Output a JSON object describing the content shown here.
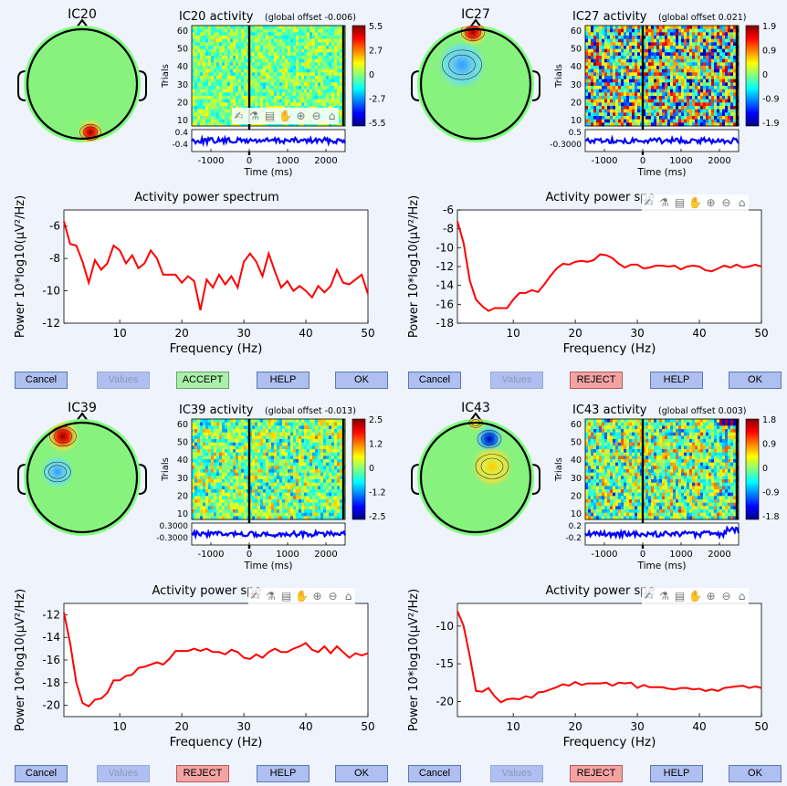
{
  "colors": {
    "background": "#eef3fc",
    "spectrum_line": "#ff0000",
    "erp_line": "#0000ff",
    "accept": "#aaf0aa",
    "reject": "#f4a3a3",
    "button": "#aebff0"
  },
  "toolbar_icons": [
    "brush-icon",
    "data-cursor-icon",
    "legend-icon",
    "pan-icon",
    "zoom-in-icon",
    "zoom-out-icon",
    "home-icon"
  ],
  "panels": [
    {
      "id": "ic20",
      "topo": {
        "title": "IC20"
      },
      "erp": {
        "title": "IC20 activity",
        "offset": "(global offset -0.006)",
        "ylabel": "Trials",
        "xlabel": "Time (ms)",
        "yticks": [
          "60",
          "50",
          "40",
          "30",
          "20",
          "10"
        ],
        "xticks": [
          "-1000",
          "0",
          "1000",
          "2000"
        ],
        "erp_ticks": [
          "0.4",
          "-0.4"
        ],
        "colorbar": [
          "5.5",
          "2.7",
          "0",
          "-2.7",
          "-5.5"
        ]
      },
      "chart_data": {
        "type": "line",
        "title": "Activity power spectrum",
        "xlabel": "Frequency (Hz)",
        "ylabel": "Power 10*log10(µV²/Hz)",
        "xlim": [
          1,
          50
        ],
        "ylim": [
          -12,
          -5
        ],
        "xticks": [
          10,
          20,
          30,
          40,
          50
        ],
        "yticks": [
          -6,
          -8,
          -10,
          -12
        ],
        "x": [
          1,
          2,
          3,
          4,
          5,
          6,
          7,
          8,
          9,
          10,
          11,
          12,
          13,
          14,
          15,
          16,
          17,
          18,
          19,
          20,
          21,
          22,
          23,
          24,
          25,
          26,
          27,
          28,
          29,
          30,
          31,
          32,
          33,
          34,
          35,
          36,
          37,
          38,
          39,
          40,
          41,
          42,
          43,
          44,
          45,
          46,
          47,
          48,
          49,
          50
        ],
        "y": [
          -5.7,
          -7.1,
          -7.2,
          -8.2,
          -9.5,
          -8.1,
          -8.7,
          -8.3,
          -7.2,
          -7.5,
          -8.3,
          -7.8,
          -8.6,
          -8.3,
          -7.5,
          -8.0,
          -9.0,
          -9.0,
          -9.0,
          -9.5,
          -9.1,
          -9.4,
          -11.2,
          -9.3,
          -9.8,
          -9.0,
          -9.6,
          -9.1,
          -9.8,
          -8.2,
          -7.7,
          -8.2,
          -9.1,
          -7.7,
          -8.8,
          -9.8,
          -9.4,
          -10.0,
          -9.7,
          -10.0,
          -10.4,
          -9.7,
          -10.1,
          -9.7,
          -8.7,
          -9.5,
          -9.6,
          -9.3,
          -9.0,
          -10.2
        ]
      },
      "buttons": {
        "cancel": "Cancel",
        "values": "Values",
        "status": "ACCEPT",
        "help": "HELP",
        "ok": "OK"
      },
      "status_kind": "accept",
      "show_spectrum_title": true
    },
    {
      "id": "ic27",
      "topo": {
        "title": "IC27"
      },
      "erp": {
        "title": "IC27 activity",
        "offset": "(global offset 0.021)",
        "ylabel": "Trials",
        "xlabel": "Time (ms)",
        "yticks": [
          "60",
          "50",
          "40",
          "30",
          "20",
          "10"
        ],
        "xticks": [
          "-1000",
          "0",
          "1000",
          "2000"
        ],
        "erp_ticks": [
          "0.5",
          "-0.3000"
        ],
        "colorbar": [
          "1.9",
          "0.9",
          "0",
          "-0.9",
          "-1.9"
        ]
      },
      "chart_data": {
        "type": "line",
        "title": "Activity power spectrum",
        "xlabel": "Frequency (Hz)",
        "ylabel": "Power 10*log10(µV²/Hz)",
        "xlim": [
          1,
          50
        ],
        "ylim": [
          -18,
          -6
        ],
        "xticks": [
          10,
          20,
          30,
          40,
          50
        ],
        "yticks": [
          -6,
          -8,
          -10,
          -12,
          -14,
          -16,
          -18
        ],
        "x": [
          1,
          2,
          3,
          4,
          5,
          6,
          7,
          8,
          9,
          10,
          11,
          12,
          13,
          14,
          15,
          16,
          17,
          18,
          19,
          20,
          21,
          22,
          23,
          24,
          25,
          26,
          27,
          28,
          29,
          30,
          31,
          32,
          33,
          34,
          35,
          36,
          37,
          38,
          39,
          40,
          41,
          42,
          43,
          44,
          45,
          46,
          47,
          48,
          49,
          50
        ],
        "y": [
          -7.2,
          -9.5,
          -13.5,
          -15.5,
          -16.2,
          -16.7,
          -16.4,
          -16.4,
          -16.4,
          -15.5,
          -14.8,
          -14.8,
          -14.5,
          -14.7,
          -13.9,
          -13.0,
          -12.2,
          -11.7,
          -11.8,
          -11.5,
          -11.4,
          -11.5,
          -11.3,
          -10.7,
          -10.8,
          -11.1,
          -11.7,
          -12.1,
          -11.8,
          -11.8,
          -12.2,
          -12.1,
          -11.9,
          -11.9,
          -12.0,
          -11.9,
          -12.3,
          -12.0,
          -11.9,
          -12.0,
          -12.4,
          -12.5,
          -12.2,
          -11.9,
          -12.1,
          -11.8,
          -12.1,
          -12.0,
          -11.8,
          -12.0
        ]
      },
      "buttons": {
        "cancel": "Cancel",
        "values": "Values",
        "status": "REJECT",
        "help": "HELP",
        "ok": "OK"
      },
      "status_kind": "reject",
      "show_spectrum_title": false,
      "spectrum_title_visible": "Activity power spe"
    },
    {
      "id": "ic39",
      "topo": {
        "title": "IC39"
      },
      "erp": {
        "title": "IC39 activity",
        "offset": "(global offset -0.013)",
        "ylabel": "Trials",
        "xlabel": "Time (ms)",
        "yticks": [
          "60",
          "50",
          "40",
          "30",
          "20",
          "10"
        ],
        "xticks": [
          "-1000",
          "0",
          "1000",
          "2000"
        ],
        "erp_ticks": [
          "0.3000",
          "-0.3000"
        ],
        "colorbar": [
          "2.5",
          "1.2",
          "0",
          "-1.2",
          "-2.5"
        ]
      },
      "chart_data": {
        "type": "line",
        "title": "Activity power spectrum",
        "xlabel": "Frequency (Hz)",
        "ylabel": "Power 10*log10(µV²/Hz)",
        "xlim": [
          1,
          50
        ],
        "ylim": [
          -21,
          -11
        ],
        "xticks": [
          10,
          20,
          30,
          40,
          50
        ],
        "yticks": [
          -12,
          -14,
          -16,
          -18,
          -20
        ],
        "x": [
          1,
          2,
          3,
          4,
          5,
          6,
          7,
          8,
          9,
          10,
          11,
          12,
          13,
          14,
          15,
          16,
          17,
          18,
          19,
          20,
          21,
          22,
          23,
          24,
          25,
          26,
          27,
          28,
          29,
          30,
          31,
          32,
          33,
          34,
          35,
          36,
          37,
          38,
          39,
          40,
          41,
          42,
          43,
          44,
          45,
          46,
          47,
          48,
          49,
          50
        ],
        "y": [
          -11.8,
          -14.5,
          -18.0,
          -19.8,
          -20.1,
          -19.5,
          -19.4,
          -18.9,
          -17.8,
          -17.8,
          -17.4,
          -17.3,
          -16.7,
          -16.6,
          -16.4,
          -16.2,
          -16.4,
          -15.9,
          -15.2,
          -15.2,
          -15.2,
          -15.0,
          -15.2,
          -15.0,
          -15.3,
          -15.3,
          -15.5,
          -15.1,
          -15.3,
          -15.8,
          -15.9,
          -15.5,
          -15.8,
          -15.3,
          -15.0,
          -15.3,
          -15.3,
          -15.0,
          -14.8,
          -14.5,
          -15.1,
          -15.3,
          -14.8,
          -15.4,
          -14.8,
          -15.3,
          -15.8,
          -15.4,
          -15.6,
          -15.4
        ]
      },
      "buttons": {
        "cancel": "Cancel",
        "values": "Values",
        "status": "REJECT",
        "help": "HELP",
        "ok": "OK"
      },
      "status_kind": "reject",
      "show_spectrum_title": false,
      "spectrum_title_visible": "Activity power spe"
    },
    {
      "id": "ic43",
      "topo": {
        "title": "IC43"
      },
      "erp": {
        "title": "IC43 activity",
        "offset": "(global offset 0.003)",
        "ylabel": "Trials",
        "xlabel": "Time (ms)",
        "yticks": [
          "60",
          "50",
          "40",
          "30",
          "20",
          "10"
        ],
        "xticks": [
          "-1000",
          "0",
          "1000",
          "2000"
        ],
        "erp_ticks": [
          "0.2",
          "-0.2"
        ],
        "colorbar": [
          "1.8",
          "0.9",
          "0",
          "-0.9",
          "-1.8"
        ]
      },
      "chart_data": {
        "type": "line",
        "title": "Activity power spectrum",
        "xlabel": "Frequency (Hz)",
        "ylabel": "Power 10*log10(µV²/Hz)",
        "xlim": [
          1,
          50
        ],
        "ylim": [
          -22,
          -7
        ],
        "xticks": [
          10,
          20,
          30,
          40,
          50
        ],
        "yticks": [
          -10,
          -15,
          -20
        ],
        "x": [
          1,
          2,
          3,
          4,
          5,
          6,
          7,
          8,
          9,
          10,
          11,
          12,
          13,
          14,
          15,
          16,
          17,
          18,
          19,
          20,
          21,
          22,
          23,
          24,
          25,
          26,
          27,
          28,
          29,
          30,
          31,
          32,
          33,
          34,
          35,
          36,
          37,
          38,
          39,
          40,
          41,
          42,
          43,
          44,
          45,
          46,
          47,
          48,
          49,
          50
        ],
        "y": [
          -8.0,
          -10.0,
          -14.0,
          -18.6,
          -18.7,
          -18.2,
          -19.3,
          -20.1,
          -19.7,
          -19.6,
          -19.7,
          -19.3,
          -19.5,
          -18.8,
          -18.7,
          -18.4,
          -18.1,
          -17.7,
          -17.9,
          -17.4,
          -17.8,
          -17.6,
          -17.6,
          -17.6,
          -17.5,
          -17.9,
          -17.5,
          -17.6,
          -17.5,
          -18.2,
          -17.8,
          -18.1,
          -18.1,
          -18.1,
          -18.3,
          -18.4,
          -18.2,
          -18.2,
          -18.4,
          -18.3,
          -18.6,
          -18.4,
          -18.6,
          -18.2,
          -18.1,
          -18.0,
          -17.9,
          -18.2,
          -18.0,
          -18.2
        ]
      },
      "buttons": {
        "cancel": "Cancel",
        "values": "Values",
        "status": "REJECT",
        "help": "HELP",
        "ok": "OK"
      },
      "status_kind": "reject",
      "show_spectrum_title": false,
      "spectrum_title_visible": "Activity power spe"
    }
  ]
}
